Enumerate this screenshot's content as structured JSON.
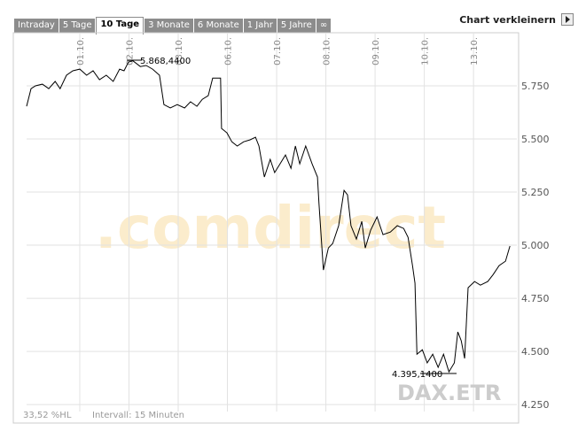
{
  "tabs": [
    "Intraday",
    "5 Tage",
    "10 Tage",
    "3 Monate",
    "6 Monate",
    "1 Jahr",
    "5 Jahre",
    "∞"
  ],
  "button": "Chart verkleinern",
  "chart_data": {
    "type": "line",
    "x": [
      -0.08,
      0.01,
      0.1,
      0.24,
      0.37,
      0.5,
      0.6,
      0.73,
      0.86,
      1.0,
      1.14,
      1.27,
      1.4,
      1.54,
      1.68,
      1.81,
      1.9,
      1.99,
      2.08,
      2.23,
      2.35,
      2.48,
      2.62,
      2.71,
      2.84,
      2.98,
      3.13,
      3.25,
      3.38,
      3.49,
      3.61,
      3.7,
      3.79,
      3.86,
      3.88,
      3.99,
      4.09,
      4.2,
      4.33,
      4.46,
      4.57,
      4.64,
      4.75,
      4.87,
      4.96,
      5.07,
      5.18,
      5.29,
      5.38,
      5.47,
      5.59,
      5.72,
      5.83,
      5.86,
      5.95,
      6.05,
      6.14,
      6.26,
      6.37,
      6.44,
      6.51,
      6.62,
      6.73,
      6.8,
      6.91,
      7.04,
      7.16,
      7.31,
      7.45,
      7.58,
      7.67,
      7.76,
      7.81,
      7.85,
      7.96,
      8.06,
      8.17,
      8.28,
      8.39,
      8.5,
      8.61,
      8.68,
      8.75,
      8.82,
      8.89,
      9.02,
      9.14,
      9.29,
      9.4,
      9.52,
      9.65,
      9.74
    ],
    "series": [
      {
        "name": "DAX.ETR",
        "color": "#000000",
        "values": [
          5654,
          5737,
          5750,
          5758,
          5737,
          5771,
          5737,
          5800,
          5821,
          5829,
          5800,
          5821,
          5779,
          5800,
          5771,
          5829,
          5821,
          5862,
          5868,
          5841,
          5846,
          5829,
          5800,
          5662,
          5646,
          5662,
          5646,
          5675,
          5654,
          5687,
          5704,
          5787,
          5787,
          5787,
          5550,
          5529,
          5487,
          5467,
          5487,
          5496,
          5508,
          5467,
          5321,
          5404,
          5342,
          5383,
          5425,
          5362,
          5467,
          5383,
          5467,
          5383,
          5321,
          5196,
          4883,
          4987,
          5008,
          5092,
          5258,
          5237,
          5092,
          5029,
          5112,
          4987,
          5071,
          5133,
          5050,
          5062,
          5092,
          5079,
          5037,
          4904,
          4821,
          4487,
          4508,
          4446,
          4487,
          4425,
          4487,
          4404,
          4446,
          4592,
          4550,
          4467,
          4800,
          4829,
          4812,
          4829,
          4862,
          4904,
          4925,
          4996
        ]
      }
    ],
    "xlim": [
      -0.08,
      9.88
    ],
    "xticks": [
      {
        "value": 1,
        "label": "01.10."
      },
      {
        "value": 2,
        "label": "02.10."
      },
      {
        "value": 3,
        "label": "03.10."
      },
      {
        "value": 4,
        "label": "06.10."
      },
      {
        "value": 5,
        "label": "07.10."
      },
      {
        "value": 6,
        "label": "08.10."
      },
      {
        "value": 7,
        "label": "09.10."
      },
      {
        "value": 8,
        "label": "10.10."
      },
      {
        "value": 9,
        "label": "13.10."
      }
    ],
    "ylim": [
      4217,
      5996
    ],
    "yticks": [
      {
        "value": 4250,
        "label": "4.250"
      },
      {
        "value": 4500,
        "label": "4.500"
      },
      {
        "value": 4750,
        "label": "4.750"
      },
      {
        "value": 5000,
        "label": "5.000"
      },
      {
        "value": 5250,
        "label": "5.250"
      },
      {
        "value": 5500,
        "label": "5.500"
      },
      {
        "value": 5750,
        "label": "5.750"
      }
    ],
    "grid": true,
    "annotations": [
      "5.868,4400",
      "4.395,1400"
    ],
    "watermark": ".comdirect",
    "footer_left": "33,52 %HL",
    "footer_interval": "Intervall: 15 Minuten"
  }
}
